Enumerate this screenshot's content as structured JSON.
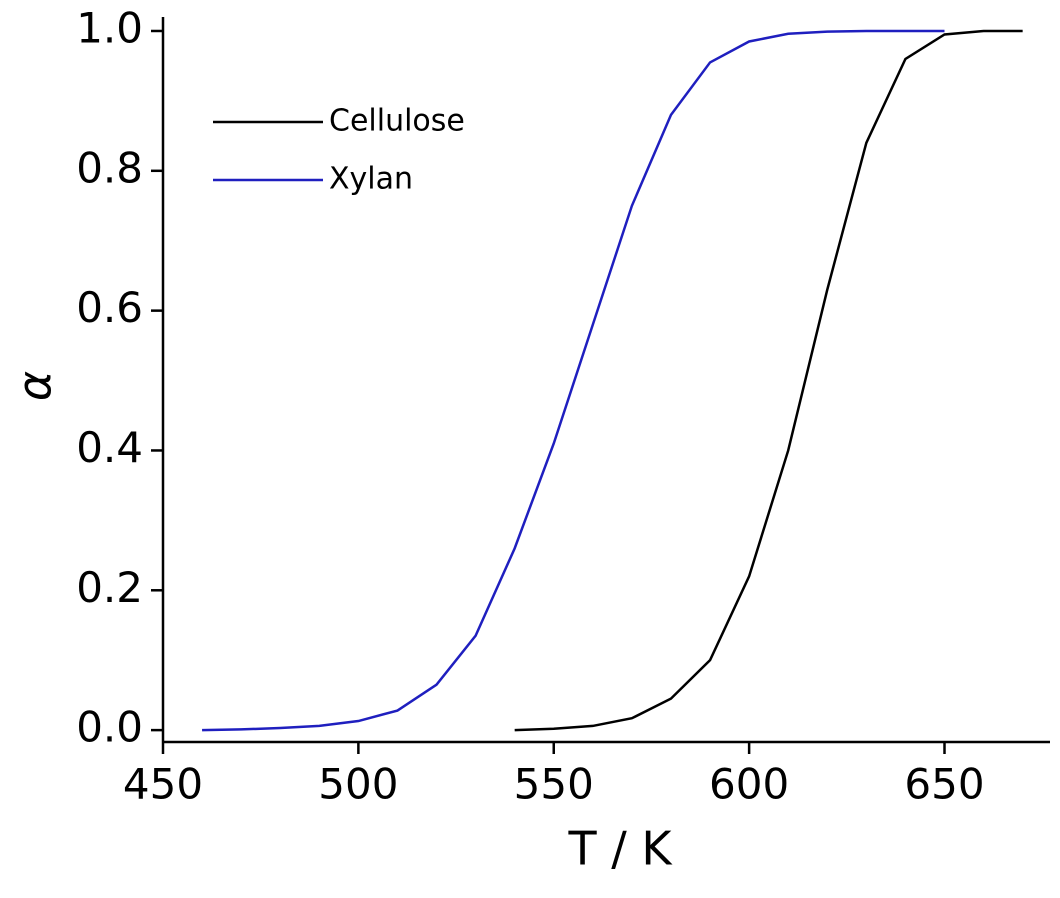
{
  "chart_data": {
    "type": "line",
    "x_label": "T / K",
    "y_label": "α",
    "xlim": [
      450,
      677
    ],
    "ylim": [
      -0.017,
      1.02
    ],
    "xticks": [
      450,
      500,
      550,
      600,
      650
    ],
    "yticks": [
      {
        "value": 0,
        "label": "0.0"
      },
      0.2,
      0.4,
      0.6,
      0.8,
      {
        "value": 1,
        "label": "1.0"
      }
    ],
    "legend": "upper left",
    "series": [
      {
        "name": "Cellulose",
        "color": "#000000",
        "x": [
          540,
          550,
          560,
          570,
          580,
          590,
          600,
          610,
          620,
          630,
          640,
          650,
          660,
          670
        ],
        "values": [
          0,
          0.002,
          0.006,
          0.017,
          0.045,
          0.1,
          0.22,
          0.4,
          0.63,
          0.84,
          0.96,
          0.995,
          1.0,
          1.0
        ]
      },
      {
        "name": "Xylan",
        "color": "#1f1fbf",
        "x": [
          460,
          470,
          480,
          490,
          500,
          510,
          520,
          530,
          540,
          550,
          560,
          570,
          580,
          590,
          600,
          610,
          620,
          630,
          640,
          650
        ],
        "values": [
          0,
          0.001,
          0.003,
          0.006,
          0.013,
          0.028,
          0.065,
          0.135,
          0.26,
          0.41,
          0.58,
          0.75,
          0.88,
          0.955,
          0.985,
          0.996,
          0.999,
          1.0,
          1.0,
          1.0
        ]
      }
    ]
  }
}
